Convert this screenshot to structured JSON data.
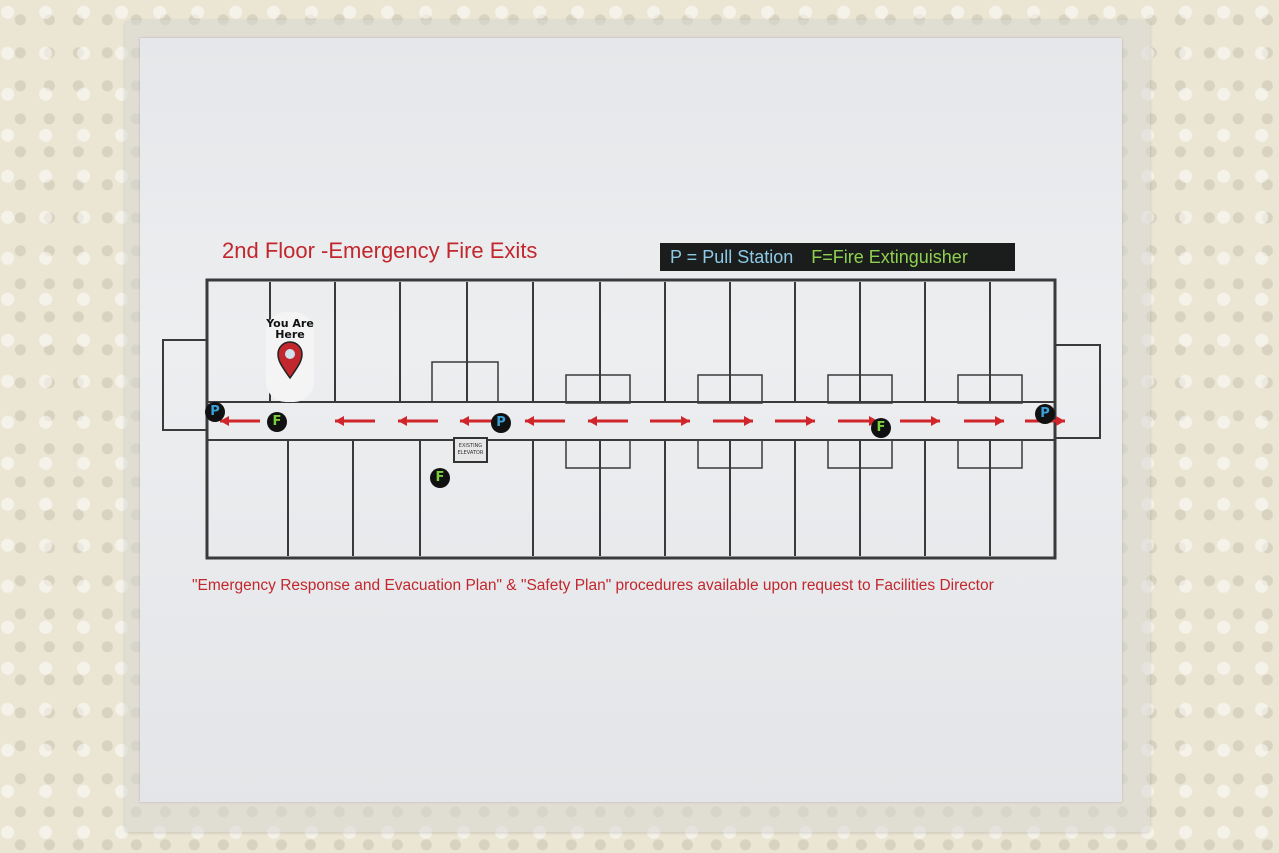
{
  "sign": {
    "title": "2nd Floor  -Emergency Fire Exits",
    "legend": {
      "pull_station": "P = Pull Station",
      "fire_extinguisher": "F=Fire Extinguisher"
    },
    "footer": "\"Emergency Response and Evacuation Plan\" & \"Safety Plan\" procedures available upon request to Facilities Director",
    "you_are_here": "You Are Here",
    "elevator_label": "EXISTING ELEVATOR",
    "pull_station_symbol": "P",
    "extinguisher_symbol": "F",
    "colors": {
      "title_red": "#c1272d",
      "pull_blue": "#3aa0d8",
      "extinguisher_green": "#7ccf3c",
      "arrow_red": "#d0252a"
    },
    "evacuation_arrow_directions": [
      "left",
      "left",
      "left",
      "left",
      "left",
      "left",
      "right",
      "right",
      "right",
      "right",
      "right",
      "right",
      "right"
    ]
  }
}
